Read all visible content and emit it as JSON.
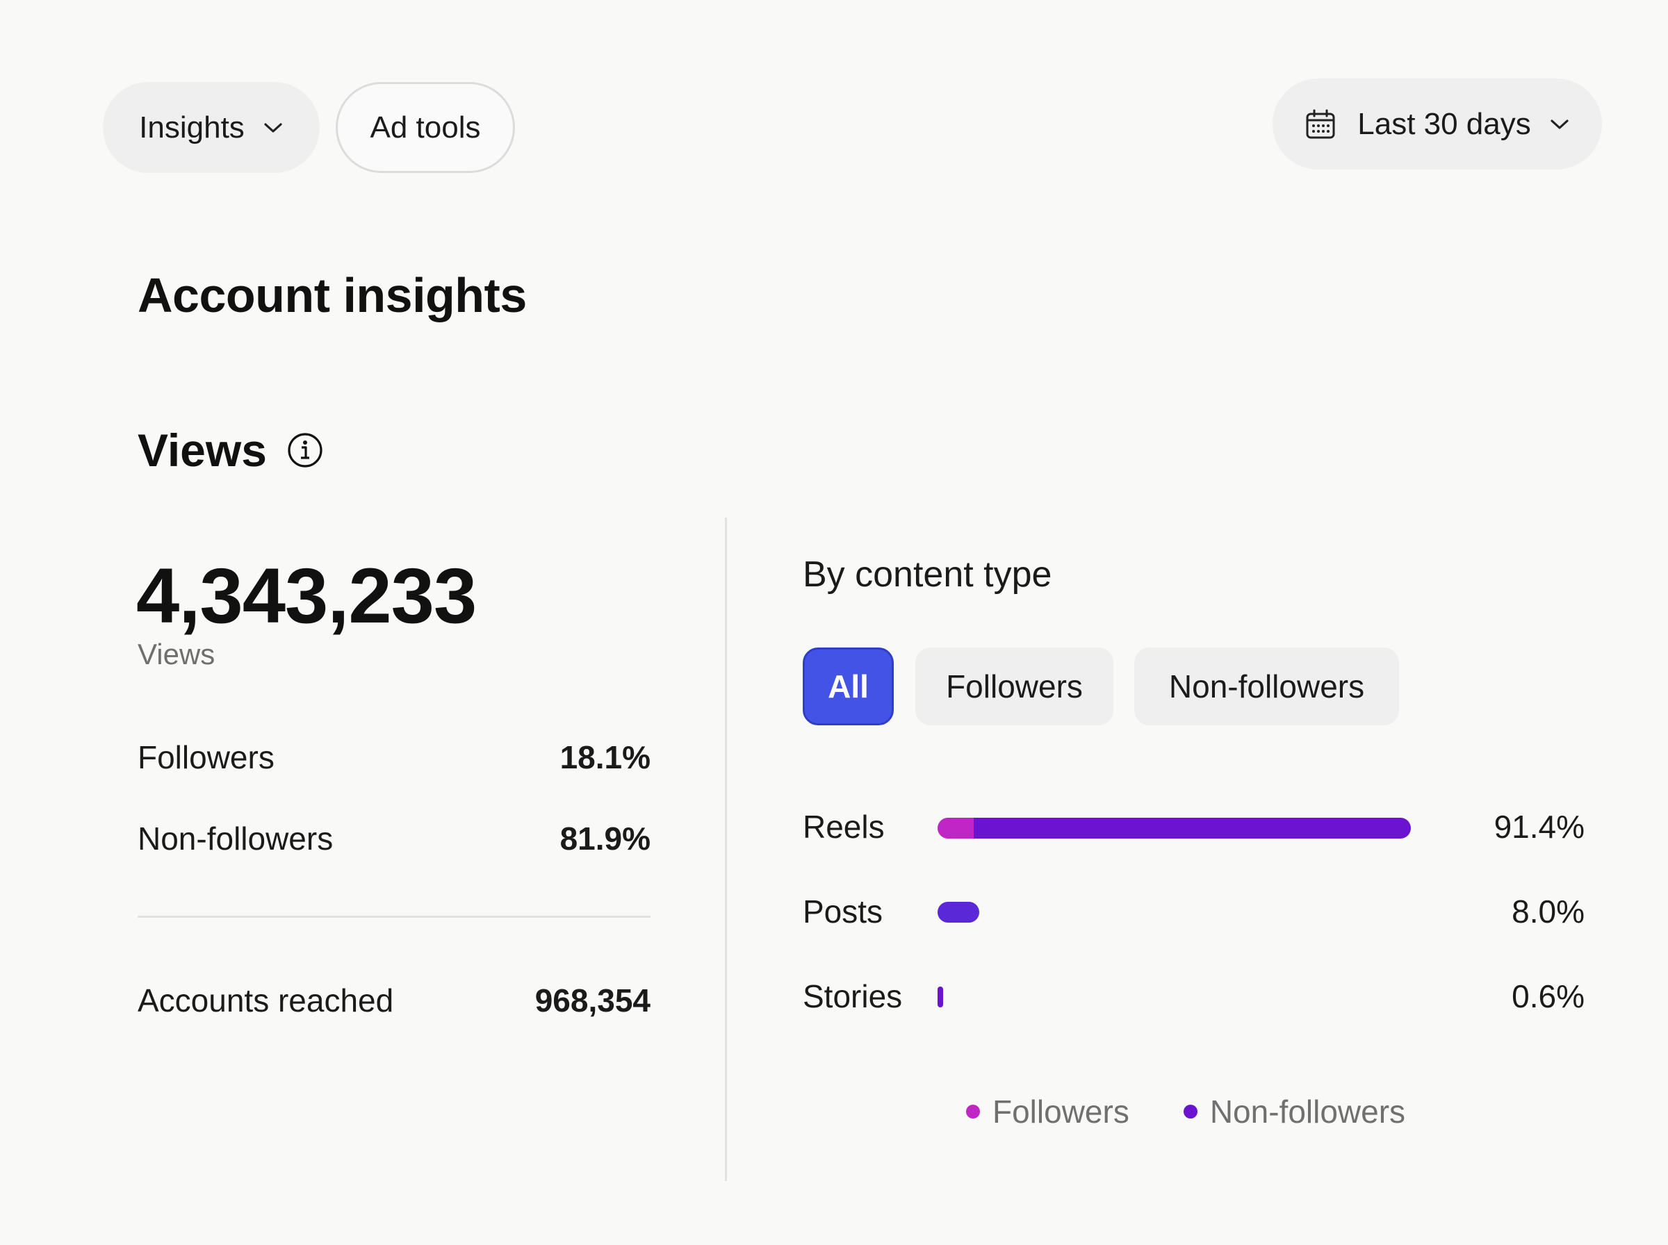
{
  "toolbar": {
    "insights_label": "Insights",
    "ad_tools_label": "Ad tools",
    "date_range_label": "Last 30 days"
  },
  "page": {
    "title": "Account insights"
  },
  "views": {
    "heading": "Views",
    "total": "4,343,233",
    "total_label": "Views",
    "breakdown": [
      {
        "label": "Followers",
        "value": "18.1%"
      },
      {
        "label": "Non-followers",
        "value": "81.9%"
      }
    ],
    "accounts_reached_label": "Accounts reached",
    "accounts_reached_value": "968,354"
  },
  "content_type": {
    "title": "By content type",
    "tabs": [
      "All",
      "Followers",
      "Non-followers"
    ],
    "active_tab": "All",
    "legend": {
      "followers": "Followers",
      "non_followers": "Non-followers"
    }
  },
  "colors": {
    "accent": "#4353e5",
    "followers": "#c026c6",
    "non_followers": "#6a14d0",
    "posts_bar": "#5a28d6"
  },
  "chart_data": {
    "type": "bar",
    "orientation": "horizontal",
    "categories": [
      "Reels",
      "Posts",
      "Stories"
    ],
    "values": [
      91.4,
      8.0,
      0.6
    ],
    "value_labels": [
      "91.4%",
      "8.0%",
      "0.6%"
    ],
    "series": [
      {
        "name": "Followers",
        "values": [
          7.0,
          0,
          0
        ]
      },
      {
        "name": "Non-followers",
        "values": [
          84.4,
          8.0,
          0.6
        ]
      }
    ],
    "xlim": [
      0,
      100
    ],
    "legend_position": "bottom",
    "grid": false
  }
}
